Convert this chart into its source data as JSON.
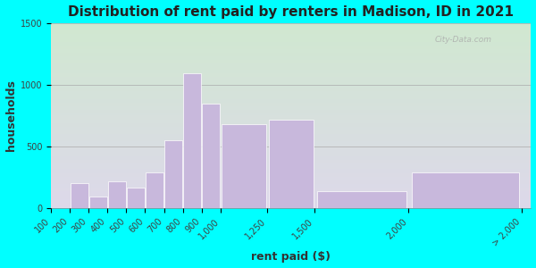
{
  "title": "Distribution of rent paid by renters in Madison, ID in 2021",
  "xlabel": "rent paid ($)",
  "ylabel": "households",
  "background_outer": "#00FFFF",
  "bar_color": "#c8b8dc",
  "bar_edge_color": "#ffffff",
  "bins_left": [
    100,
    200,
    300,
    400,
    500,
    600,
    700,
    800,
    900,
    1000,
    1250,
    1500,
    2000
  ],
  "bins_right": [
    200,
    300,
    400,
    500,
    600,
    700,
    800,
    900,
    1000,
    1250,
    1500,
    2000,
    2600
  ],
  "values": [
    0,
    200,
    90,
    215,
    165,
    290,
    550,
    1095,
    850,
    680,
    720,
    140,
    290
  ],
  "xtick_positions": [
    100,
    200,
    300,
    400,
    500,
    600,
    700,
    800,
    900,
    1000,
    1250,
    1500,
    2000,
    2600
  ],
  "xtick_labels": [
    "100",
    "200",
    "300",
    "400",
    "500",
    "600",
    "700",
    "800",
    "900",
    "1,000",
    "1,250",
    "1,500",
    "2,000",
    "> 2,000"
  ],
  "xlim": [
    100,
    2650
  ],
  "ylim": [
    0,
    1500
  ],
  "yticks": [
    0,
    500,
    1000,
    1500
  ],
  "title_fontsize": 11,
  "axis_label_fontsize": 9,
  "tick_fontsize": 7,
  "watermark": "City-Data.com"
}
